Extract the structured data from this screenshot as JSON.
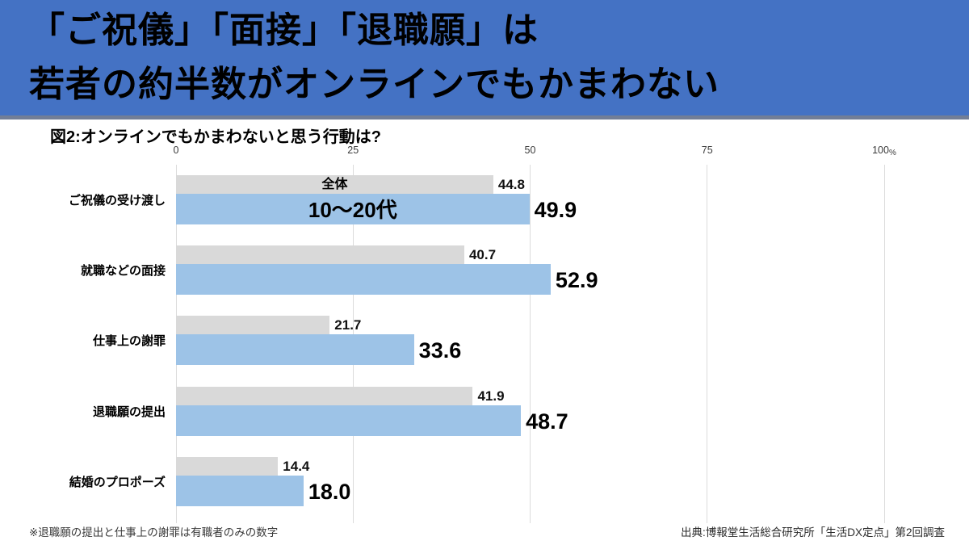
{
  "header": {
    "title_lines": [
      "「ご祝儀」「面接」「退職願」は",
      "若者の約半数がオンラインでもかまわない"
    ]
  },
  "chart_data": {
    "type": "bar",
    "orientation": "horizontal",
    "title": "図2:オンラインでもかまわないと思う行動は?",
    "categories": [
      "ご祝儀の受け渡し",
      "就職などの面接",
      "仕事上の謝罪",
      "退職願の提出",
      "結婚のプロポーズ"
    ],
    "series": [
      {
        "name": "全体",
        "color": "#D9D9D9",
        "values": [
          44.8,
          40.7,
          21.7,
          41.9,
          14.4
        ]
      },
      {
        "name": "10〜20代",
        "color": "#9DC3E7",
        "values": [
          49.9,
          52.9,
          33.6,
          48.7,
          18.0
        ]
      }
    ],
    "xlim": [
      0,
      100
    ],
    "x_ticks": [
      0,
      25,
      50,
      75,
      100
    ],
    "x_tick_labels": [
      "0",
      "25",
      "50",
      "75",
      "100%"
    ],
    "grid": true,
    "value_labels_shown": true,
    "legend_position": "inside-first-bars"
  },
  "footer": {
    "note": "※退職願の提出と仕事上の謝罪は有職者のみの数字",
    "source": "出典:博報堂生活総合研究所「生活DX定点」第2回調査"
  },
  "colors": {
    "header_bg": "#4472C4",
    "header_strip": "#727e97",
    "bar_all": "#D9D9D9",
    "bar_young": "#9DC3E7",
    "gridline": "#DCDCDC"
  }
}
